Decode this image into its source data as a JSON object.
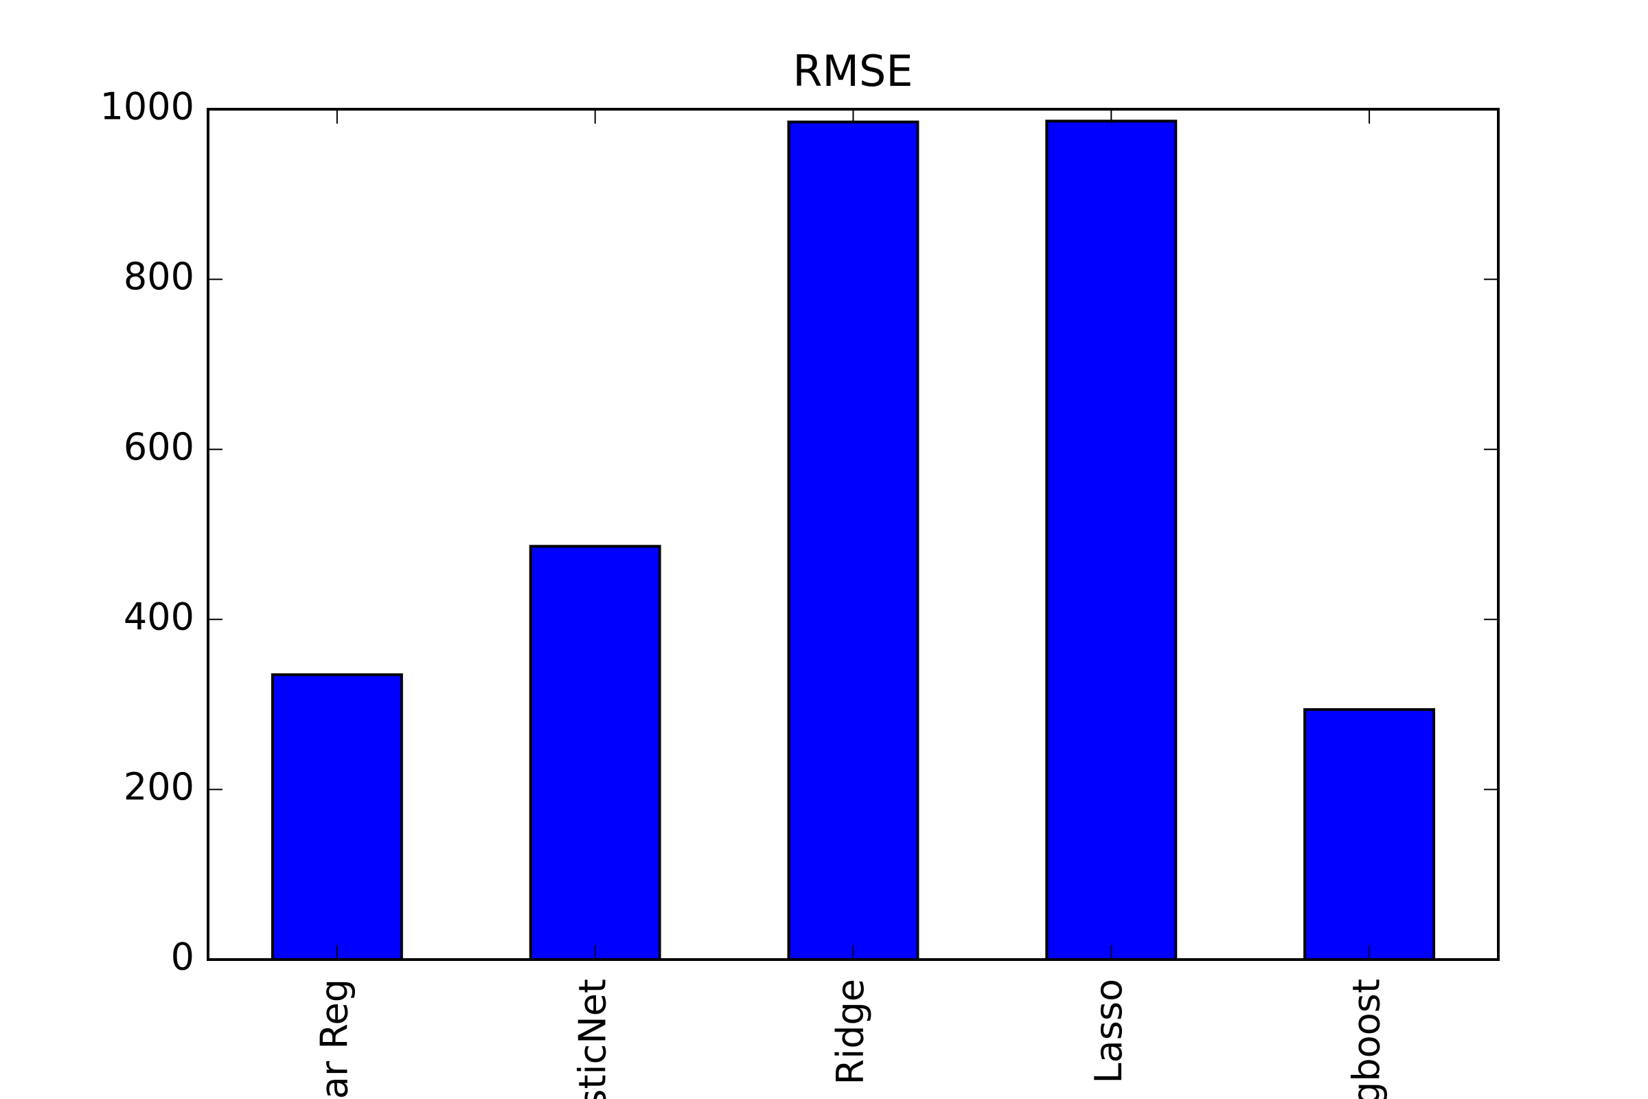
{
  "chart_data": {
    "type": "bar",
    "title": "RMSE",
    "categories": [
      "ar Reg",
      "sticNet",
      "Ridge",
      "Lasso",
      "gboost"
    ],
    "values": [
      335,
      486,
      985,
      986,
      294
    ],
    "color": "#0000ff",
    "ylim": [
      0,
      1000
    ],
    "yticks": [
      0,
      200,
      400,
      600,
      800,
      1000
    ]
  }
}
